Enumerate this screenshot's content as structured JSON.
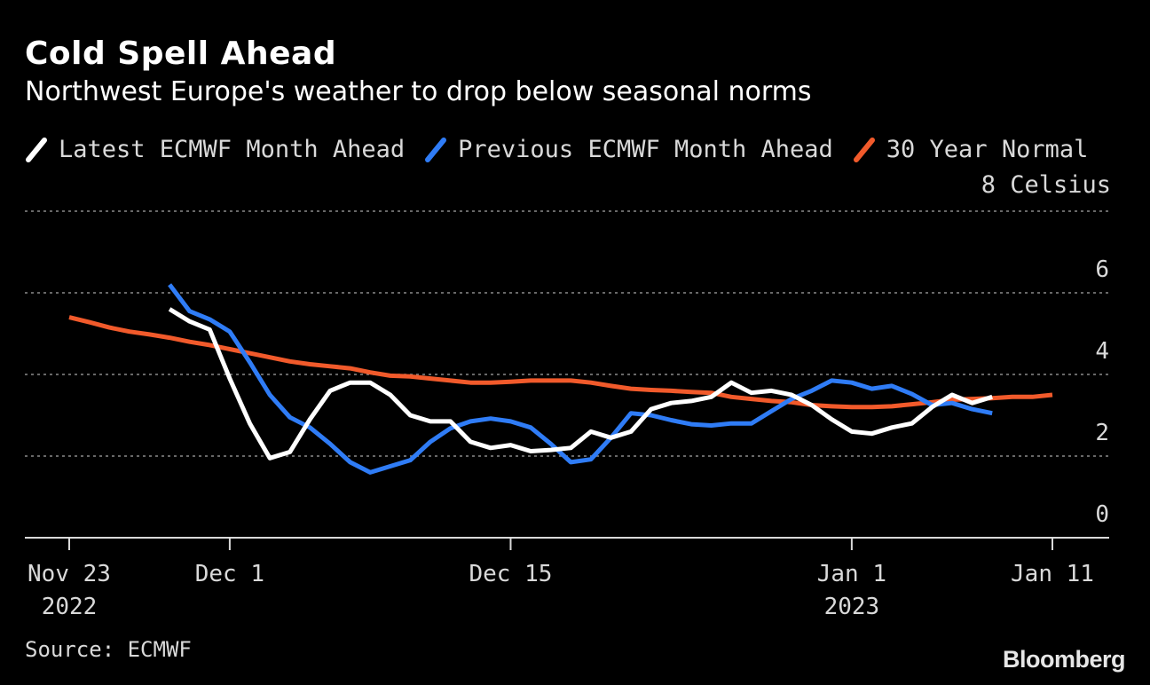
{
  "chart_data": {
    "type": "line",
    "title": "Cold Spell Ahead",
    "subtitle": "Northwest Europe's weather to drop below seasonal norms",
    "ylabel": "8 Celsius",
    "ylim": [
      0,
      8
    ],
    "yticks": [
      0,
      2,
      4,
      6
    ],
    "xlim": [
      "2022-11-23",
      "2023-01-11"
    ],
    "xticks": [
      {
        "date": "2022-11-23",
        "label": "Nov 23",
        "sublabel": "2022"
      },
      {
        "date": "2022-12-01",
        "label": "Dec 1",
        "sublabel": ""
      },
      {
        "date": "2022-12-15",
        "label": "Dec 15",
        "sublabel": ""
      },
      {
        "date": "2023-01-01",
        "label": "Jan 1",
        "sublabel": "2023"
      },
      {
        "date": "2023-01-11",
        "label": "Jan 11",
        "sublabel": ""
      }
    ],
    "grid": true,
    "legend_position": "top-left",
    "series": [
      {
        "name": "Latest ECMWF Month Ahead",
        "color": "#ffffff",
        "points": [
          [
            "2022-11-28",
            5.6
          ],
          [
            "2022-11-29",
            5.3
          ],
          [
            "2022-11-30",
            5.1
          ],
          [
            "2022-12-01",
            3.9
          ],
          [
            "2022-12-02",
            2.8
          ],
          [
            "2022-12-03",
            1.95
          ],
          [
            "2022-12-04",
            2.1
          ],
          [
            "2022-12-05",
            2.9
          ],
          [
            "2022-12-06",
            3.6
          ],
          [
            "2022-12-07",
            3.8
          ],
          [
            "2022-12-08",
            3.8
          ],
          [
            "2022-12-09",
            3.5
          ],
          [
            "2022-12-10",
            3.0
          ],
          [
            "2022-12-11",
            2.85
          ],
          [
            "2022-12-12",
            2.85
          ],
          [
            "2022-12-13",
            2.35
          ],
          [
            "2022-12-14",
            2.2
          ],
          [
            "2022-12-15",
            2.27
          ],
          [
            "2022-12-16",
            2.12
          ],
          [
            "2022-12-17",
            2.15
          ],
          [
            "2022-12-18",
            2.2
          ],
          [
            "2022-12-19",
            2.6
          ],
          [
            "2022-12-20",
            2.45
          ],
          [
            "2022-12-21",
            2.6
          ],
          [
            "2022-12-22",
            3.15
          ],
          [
            "2022-12-23",
            3.3
          ],
          [
            "2022-12-24",
            3.35
          ],
          [
            "2022-12-25",
            3.45
          ],
          [
            "2022-12-26",
            3.8
          ],
          [
            "2022-12-27",
            3.55
          ],
          [
            "2022-12-28",
            3.6
          ],
          [
            "2022-12-29",
            3.5
          ],
          [
            "2022-12-30",
            3.25
          ],
          [
            "2022-12-31",
            2.9
          ],
          [
            "2023-01-01",
            2.6
          ],
          [
            "2023-01-02",
            2.55
          ],
          [
            "2023-01-03",
            2.7
          ],
          [
            "2023-01-04",
            2.8
          ],
          [
            "2023-01-05",
            3.2
          ],
          [
            "2023-01-06",
            3.5
          ],
          [
            "2023-01-07",
            3.3
          ],
          [
            "2023-01-08",
            3.45
          ]
        ]
      },
      {
        "name": "Previous ECMWF Month Ahead",
        "color": "#2f7cf6",
        "points": [
          [
            "2022-11-28",
            6.2
          ],
          [
            "2022-11-29",
            5.55
          ],
          [
            "2022-11-30",
            5.35
          ],
          [
            "2022-12-01",
            5.05
          ],
          [
            "2022-12-02",
            4.3
          ],
          [
            "2022-12-03",
            3.5
          ],
          [
            "2022-12-04",
            2.95
          ],
          [
            "2022-12-05",
            2.7
          ],
          [
            "2022-12-06",
            2.3
          ],
          [
            "2022-12-07",
            1.85
          ],
          [
            "2022-12-08",
            1.6
          ],
          [
            "2022-12-09",
            1.75
          ],
          [
            "2022-12-10",
            1.9
          ],
          [
            "2022-12-11",
            2.35
          ],
          [
            "2022-12-12",
            2.68
          ],
          [
            "2022-12-13",
            2.85
          ],
          [
            "2022-12-14",
            2.92
          ],
          [
            "2022-12-15",
            2.85
          ],
          [
            "2022-12-16",
            2.7
          ],
          [
            "2022-12-17",
            2.3
          ],
          [
            "2022-12-18",
            1.85
          ],
          [
            "2022-12-19",
            1.92
          ],
          [
            "2022-12-20",
            2.45
          ],
          [
            "2022-12-21",
            3.05
          ],
          [
            "2022-12-22",
            3.0
          ],
          [
            "2022-12-23",
            2.88
          ],
          [
            "2022-12-24",
            2.78
          ],
          [
            "2022-12-25",
            2.75
          ],
          [
            "2022-12-26",
            2.8
          ],
          [
            "2022-12-27",
            2.8
          ],
          [
            "2022-12-28",
            3.1
          ],
          [
            "2022-12-29",
            3.4
          ],
          [
            "2022-12-30",
            3.6
          ],
          [
            "2022-12-31",
            3.85
          ],
          [
            "2023-01-01",
            3.8
          ],
          [
            "2023-01-02",
            3.65
          ],
          [
            "2023-01-03",
            3.72
          ],
          [
            "2023-01-04",
            3.52
          ],
          [
            "2023-01-05",
            3.25
          ],
          [
            "2023-01-06",
            3.3
          ],
          [
            "2023-01-07",
            3.15
          ],
          [
            "2023-01-08",
            3.05
          ]
        ]
      },
      {
        "name": "30 Year Normal",
        "color": "#f15a2b",
        "points": [
          [
            "2022-11-23",
            5.4
          ],
          [
            "2022-11-24",
            5.28
          ],
          [
            "2022-11-25",
            5.15
          ],
          [
            "2022-11-26",
            5.05
          ],
          [
            "2022-11-27",
            4.98
          ],
          [
            "2022-11-28",
            4.9
          ],
          [
            "2022-11-29",
            4.8
          ],
          [
            "2022-11-30",
            4.72
          ],
          [
            "2022-12-01",
            4.62
          ],
          [
            "2022-12-02",
            4.52
          ],
          [
            "2022-12-03",
            4.42
          ],
          [
            "2022-12-04",
            4.32
          ],
          [
            "2022-12-05",
            4.25
          ],
          [
            "2022-12-06",
            4.2
          ],
          [
            "2022-12-07",
            4.15
          ],
          [
            "2022-12-08",
            4.05
          ],
          [
            "2022-12-09",
            3.97
          ],
          [
            "2022-12-10",
            3.95
          ],
          [
            "2022-12-11",
            3.9
          ],
          [
            "2022-12-12",
            3.85
          ],
          [
            "2022-12-13",
            3.8
          ],
          [
            "2022-12-14",
            3.8
          ],
          [
            "2022-12-15",
            3.82
          ],
          [
            "2022-12-16",
            3.85
          ],
          [
            "2022-12-17",
            3.85
          ],
          [
            "2022-12-18",
            3.85
          ],
          [
            "2022-12-19",
            3.8
          ],
          [
            "2022-12-20",
            3.72
          ],
          [
            "2022-12-21",
            3.65
          ],
          [
            "2022-12-22",
            3.62
          ],
          [
            "2022-12-23",
            3.6
          ],
          [
            "2022-12-24",
            3.57
          ],
          [
            "2022-12-25",
            3.55
          ],
          [
            "2022-12-26",
            3.45
          ],
          [
            "2022-12-27",
            3.4
          ],
          [
            "2022-12-28",
            3.35
          ],
          [
            "2022-12-29",
            3.32
          ],
          [
            "2022-12-30",
            3.25
          ],
          [
            "2022-12-31",
            3.22
          ],
          [
            "2023-01-01",
            3.2
          ],
          [
            "2023-01-02",
            3.2
          ],
          [
            "2023-01-03",
            3.22
          ],
          [
            "2023-01-04",
            3.27
          ],
          [
            "2023-01-05",
            3.32
          ],
          [
            "2023-01-06",
            3.38
          ],
          [
            "2023-01-07",
            3.4
          ],
          [
            "2023-01-08",
            3.42
          ],
          [
            "2023-01-09",
            3.45
          ],
          [
            "2023-01-10",
            3.45
          ],
          [
            "2023-01-11",
            3.5
          ]
        ]
      }
    ]
  },
  "source": "Source: ECMWF",
  "brand": "Bloomberg"
}
